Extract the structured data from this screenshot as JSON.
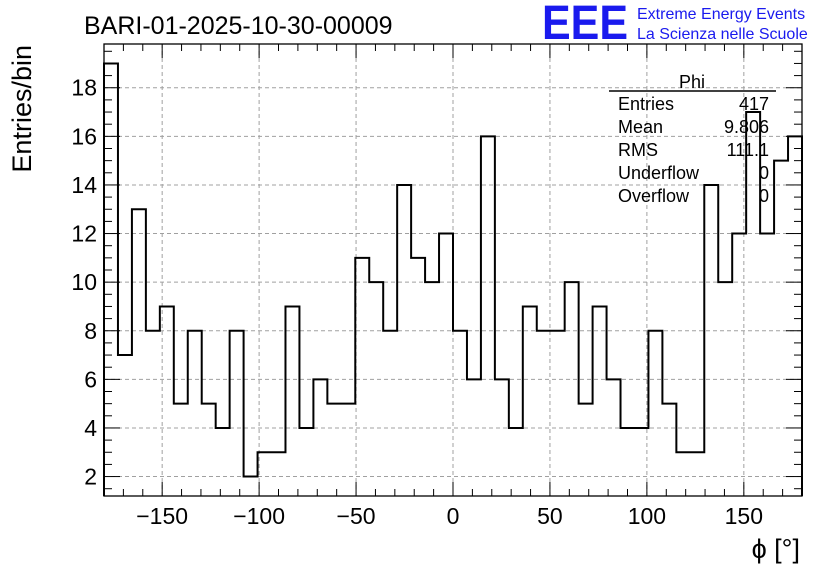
{
  "chart_data": {
    "type": "histogram",
    "title": "BARI-01-2025-10-30-00009",
    "xlabel": "ϕ [°]",
    "ylabel": "Entries/bin",
    "xlim": [
      -180,
      180
    ],
    "ylim": [
      1.2,
      19.8
    ],
    "bin_width": 7.2,
    "grid": true,
    "x_ticks": [
      -150,
      -100,
      -50,
      0,
      50,
      100,
      150
    ],
    "x_tick_labels": [
      "−150",
      "−100",
      "−50",
      "0",
      "50",
      "100",
      "150"
    ],
    "y_ticks": [
      2,
      4,
      6,
      8,
      10,
      12,
      14,
      16,
      18
    ],
    "y_tick_labels": [
      "2",
      "4",
      "6",
      "8",
      "10",
      "12",
      "14",
      "16",
      "18"
    ],
    "values": [
      19,
      7,
      13,
      8,
      9,
      5,
      8,
      5,
      4,
      8,
      2,
      3,
      3,
      9,
      4,
      6,
      5,
      5,
      11,
      10,
      8,
      14,
      11,
      10,
      12,
      8,
      6,
      16,
      6,
      4,
      9,
      8,
      8,
      10,
      5,
      9,
      6,
      4,
      4,
      8,
      5,
      3,
      3,
      14,
      10,
      12,
      17,
      12,
      15,
      16
    ],
    "stats": {
      "name": "Phi",
      "rows": [
        {
          "label": "Entries",
          "value": "417"
        },
        {
          "label": "Mean",
          "value": "9.806"
        },
        {
          "label": "RMS",
          "value": "111.1"
        },
        {
          "label": "Underflow",
          "value": "0"
        },
        {
          "label": "Overflow",
          "value": "0"
        }
      ]
    }
  },
  "logo": {
    "text": "EEE",
    "line1": "Extreme Energy Events",
    "line2": "La Scienza nelle Scuole",
    "color": "#1a1aee"
  },
  "colors": {
    "line": "#000000",
    "grid": "#a0a0a0"
  }
}
